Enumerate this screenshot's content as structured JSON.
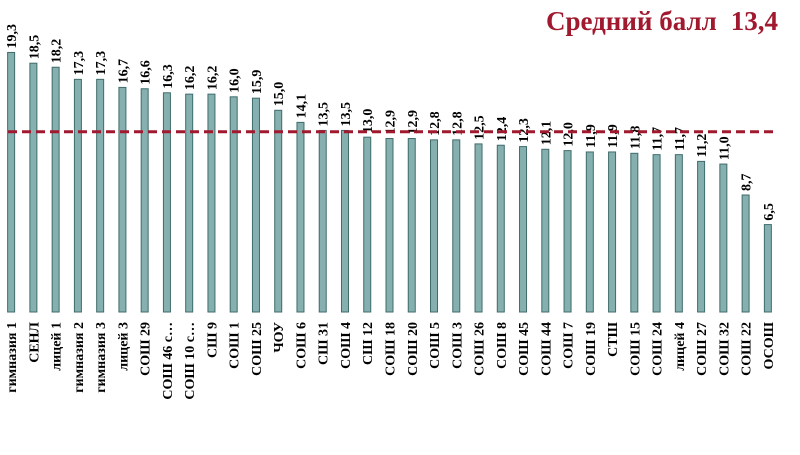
{
  "chart_data": {
    "type": "bar",
    "categories": [
      "гимназия 1",
      "СЕНЛ",
      "лицей 1",
      "гимназия 2",
      "гимназия 3",
      "лицей 3",
      "СОШ 29",
      "СОШ 46 с…",
      "СОШ 10 с…",
      "СШ 9",
      "СОШ 1",
      "СОШ 25",
      "ЧОУ",
      "СОШ 6",
      "СШ 31",
      "СОШ 4",
      "СШ 12",
      "СОШ 18",
      "СОШ 20",
      "СОШ 5",
      "СОШ 3",
      "СОШ 26",
      "СОШ 8",
      "СОШ 45",
      "СОШ 44",
      "СОШ 7",
      "СОШ 19",
      "СТШ",
      "СОШ 15",
      "СОШ 24",
      "лицей 4",
      "СОШ 27",
      "СОШ 32",
      "СОШ 22",
      "ОСОШ"
    ],
    "values": [
      19.3,
      18.5,
      18.2,
      17.3,
      17.3,
      16.7,
      16.6,
      16.3,
      16.2,
      16.2,
      16.0,
      15.9,
      15.0,
      14.1,
      13.5,
      13.5,
      13.0,
      12.9,
      12.9,
      12.8,
      12.8,
      12.5,
      12.4,
      12.3,
      12.1,
      12.0,
      11.9,
      11.9,
      11.8,
      11.7,
      11.7,
      11.2,
      11.0,
      8.7,
      6.5
    ],
    "value_labels": [
      "19,3",
      "18,5",
      "18,2",
      "17,3",
      "17,3",
      "16,7",
      "16,6",
      "16,3",
      "16,2",
      "16,2",
      "16,0",
      "15,9",
      "15,0",
      "14,1",
      "13,5",
      "13,5",
      "13,0",
      "12,9",
      "12,9",
      "12,8",
      "12,8",
      "12,5",
      "12,4",
      "12,3",
      "12,1",
      "12,0",
      "11,9",
      "11,9",
      "11,8",
      "11,7",
      "11,7",
      "11,2",
      "11,0",
      "8,7",
      "6,5"
    ],
    "color": "#86b0b0",
    "ylim": [
      0,
      23.2
    ],
    "reference_line": {
      "label": "Средний балл",
      "value": 13.4,
      "value_label": "13,4",
      "color": "#a0192e"
    }
  }
}
